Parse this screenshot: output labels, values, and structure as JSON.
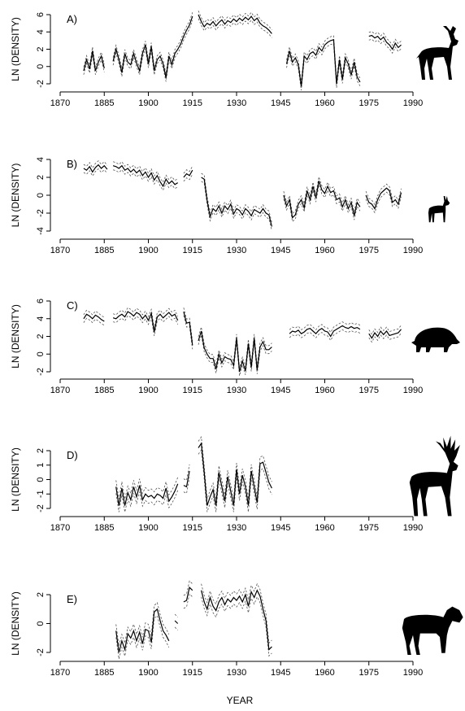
{
  "figure": {
    "xlabel": "YEAR",
    "ylabel": "LN (DENSITY)"
  },
  "chart_data": [
    {
      "type": "line",
      "panel": "A)",
      "species_icon": "fallow-deer-silhouette",
      "xlim": [
        1870,
        1990
      ],
      "ylim": [
        -2,
        6
      ],
      "xticks": [
        1870,
        1885,
        1900,
        1915,
        1930,
        1945,
        1960,
        1975,
        1990
      ],
      "yticks": [
        -2,
        0,
        2,
        4,
        6
      ],
      "series": [
        {
          "x": [
            1878,
            1879,
            1880,
            1881,
            1882,
            1883,
            1884,
            1885,
            null,
            1888,
            1889,
            1890,
            1891,
            1892,
            1893,
            1894,
            1895,
            1896,
            1897,
            1898,
            1899,
            1900,
            1901,
            1902,
            1903,
            1904,
            1905,
            1906,
            1907,
            1908,
            1909,
            1910,
            1911,
            1912,
            1913,
            1914,
            1915,
            null,
            1917,
            1918,
            1919,
            1920,
            1921,
            1922,
            1923,
            1924,
            1925,
            1926,
            1927,
            1928,
            1929,
            1930,
            1931,
            1932,
            1933,
            1934,
            1935,
            1936,
            1937,
            1938,
            1939,
            1940,
            1941,
            1942,
            null,
            1947,
            1948,
            1949,
            1950,
            1951,
            1952,
            1953,
            1954,
            1955,
            1956,
            1957,
            1958,
            1959,
            1960,
            1961,
            1962,
            1963,
            1964,
            1965,
            1966,
            1967,
            1968,
            1969,
            1970,
            1971,
            1972,
            null,
            1975,
            1976,
            1977,
            1978,
            1979,
            1980,
            1981,
            1982,
            1983,
            1984,
            1985,
            1986
          ],
          "y": [
            -0.5,
            0.8,
            -0.3,
            1.8,
            -0.5,
            0.5,
            1.2,
            -0.2,
            null,
            0.6,
            2.0,
            0.8,
            -0.7,
            1.5,
            0.5,
            0.2,
            1.5,
            0.4,
            -0.5,
            1.5,
            2.5,
            0.3,
            2.3,
            -0.5,
            0.8,
            1.2,
            0.3,
            -1.3,
            1.2,
            0.2,
            1.5,
            2.0,
            2.6,
            3.5,
            4.2,
            4.8,
            5.8,
            null,
            6.0,
            5.2,
            4.6,
            5.0,
            4.8,
            5.2,
            4.7,
            5.1,
            5.4,
            4.9,
            5.3,
            5.1,
            5.5,
            5.2,
            5.6,
            5.3,
            5.7,
            5.4,
            5.8,
            5.3,
            5.6,
            5.0,
            4.7,
            4.5,
            4.2,
            3.8,
            null,
            0.3,
            1.8,
            0.5,
            1.0,
            0.2,
            -2.3,
            1.2,
            0.8,
            1.5,
            1.7,
            1.3,
            2.2,
            1.8,
            2.5,
            2.8,
            3.0,
            3.1,
            -2.0,
            0.8,
            -1.5,
            1.0,
            0.3,
            -1.0,
            0.5,
            -1.2,
            -1.8,
            null,
            3.5,
            3.6,
            3.3,
            3.5,
            3.1,
            3.4,
            2.8,
            2.5,
            2.0,
            2.7,
            2.2,
            2.5
          ]
        }
      ]
    },
    {
      "type": "line",
      "panel": "B)",
      "species_icon": "roe-deer-silhouette",
      "xlim": [
        1870,
        1990
      ],
      "ylim": [
        -4,
        4
      ],
      "xticks": [
        1870,
        1885,
        1900,
        1915,
        1930,
        1945,
        1960,
        1975,
        1990
      ],
      "yticks": [
        -4,
        -2,
        0,
        2,
        4
      ],
      "series": [
        {
          "x": [
            1878,
            1879,
            1880,
            1881,
            1882,
            1883,
            1884,
            1885,
            1886,
            null,
            1888,
            1889,
            1890,
            1891,
            1892,
            1893,
            1894,
            1895,
            1896,
            1897,
            1898,
            1899,
            1900,
            1901,
            1902,
            1903,
            1904,
            1905,
            1906,
            1907,
            1908,
            1909,
            1910,
            null,
            1912,
            1913,
            1914,
            1915,
            null,
            1918,
            1919,
            1920,
            1921,
            1922,
            1923,
            1924,
            1925,
            1926,
            1927,
            1928,
            1929,
            1930,
            1931,
            1932,
            1933,
            1934,
            1935,
            1936,
            1937,
            1938,
            1939,
            1940,
            1941,
            1942,
            null,
            1946,
            1947,
            1948,
            1949,
            1950,
            1951,
            1952,
            1953,
            1954,
            1955,
            1956,
            1957,
            1958,
            1959,
            1960,
            1961,
            1962,
            1963,
            1964,
            1965,
            1966,
            1967,
            1968,
            1969,
            1970,
            1971,
            1972,
            null,
            1974,
            1975,
            1976,
            1977,
            1978,
            1979,
            1980,
            1981,
            1982,
            1983,
            1984,
            1985,
            1986
          ],
          "y": [
            3.0,
            2.8,
            3.2,
            2.6,
            3.1,
            3.4,
            3.0,
            3.3,
            2.9,
            null,
            3.3,
            3.2,
            3.0,
            3.3,
            2.8,
            3.0,
            2.6,
            2.9,
            2.5,
            2.8,
            2.2,
            2.6,
            2.0,
            2.5,
            1.7,
            2.2,
            1.5,
            1.0,
            1.8,
            1.3,
            1.6,
            1.2,
            1.4,
            null,
            2.0,
            2.4,
            2.2,
            2.8,
            null,
            2.0,
            1.8,
            -0.6,
            -2.4,
            -1.5,
            -1.8,
            -1.2,
            -2.0,
            -1.2,
            -1.6,
            -1.0,
            -2.1,
            -1.5,
            -1.7,
            -2.2,
            -1.5,
            -1.8,
            -2.3,
            -1.6,
            -1.8,
            -2.0,
            -1.5,
            -2.0,
            -2.2,
            -3.5,
            null,
            0.0,
            -1.2,
            -0.5,
            -2.5,
            -2.2,
            -1.0,
            -0.5,
            -1.4,
            0.5,
            -0.5,
            1.0,
            -0.3,
            1.6,
            0.6,
            0.2,
            1.0,
            0.3,
            0.5,
            -0.5,
            -0.3,
            -1.3,
            -0.5,
            -1.5,
            -0.8,
            -2.3,
            -0.8,
            -1.3,
            null,
            0.0,
            -0.8,
            -1.0,
            -1.5,
            -0.5,
            0.2,
            0.5,
            0.8,
            0.5,
            -0.8,
            -0.5,
            -1.0,
            0.3
          ]
        }
      ]
    },
    {
      "type": "line",
      "panel": "C)",
      "species_icon": "wild-boar-silhouette",
      "xlim": [
        1870,
        1990
      ],
      "ylim": [
        -2,
        6
      ],
      "xticks": [
        1870,
        1885,
        1900,
        1915,
        1930,
        1945,
        1960,
        1975,
        1990
      ],
      "yticks": [
        -2,
        0,
        2,
        4,
        6
      ],
      "series": [
        {
          "x": [
            1878,
            1879,
            1880,
            1881,
            1882,
            1883,
            1884,
            1885,
            null,
            1888,
            1889,
            1890,
            1891,
            1892,
            1893,
            1894,
            1895,
            1896,
            1897,
            1898,
            1899,
            1900,
            1901,
            1902,
            1903,
            1904,
            1905,
            1906,
            1907,
            1908,
            1909,
            1910,
            null,
            1912,
            1913,
            1914,
            1915,
            null,
            1917,
            1918,
            1919,
            1920,
            1921,
            1922,
            1923,
            1924,
            1925,
            1926,
            1927,
            1928,
            1929,
            1930,
            1931,
            1932,
            1933,
            1934,
            1935,
            1936,
            1937,
            1938,
            1939,
            1940,
            1941,
            1942,
            null,
            1948,
            1949,
            1950,
            1951,
            1952,
            1953,
            1954,
            1955,
            1956,
            1957,
            1958,
            1959,
            1960,
            1961,
            1962,
            1963,
            1964,
            1965,
            1966,
            1967,
            1968,
            1969,
            1970,
            1971,
            1972,
            null,
            1975,
            1976,
            1977,
            1978,
            1979,
            1980,
            1981,
            1982,
            1983,
            1984,
            1985,
            1986
          ],
          "y": [
            4.0,
            4.5,
            4.3,
            4.0,
            4.4,
            4.2,
            3.9,
            3.7,
            null,
            4.1,
            4.0,
            4.3,
            4.5,
            4.2,
            4.8,
            4.6,
            4.3,
            4.7,
            4.5,
            4.0,
            4.4,
            3.8,
            4.6,
            2.5,
            4.2,
            4.5,
            4.1,
            4.4,
            4.7,
            4.3,
            4.5,
            3.8,
            null,
            4.8,
            3.5,
            3.6,
            1.0,
            null,
            1.5,
            2.6,
            0.7,
            0.0,
            -0.5,
            -0.5,
            -1.7,
            0.0,
            -1.0,
            -0.3,
            -0.5,
            -0.6,
            -1.3,
            1.8,
            -2.0,
            -0.8,
            -1.9,
            1.2,
            -1.5,
            1.8,
            -1.8,
            0.8,
            1.4,
            0.5,
            0.5,
            0.8,
            null,
            2.3,
            2.6,
            2.5,
            2.7,
            2.3,
            2.5,
            2.8,
            2.9,
            2.6,
            2.3,
            2.7,
            2.9,
            2.6,
            2.5,
            2.0,
            2.6,
            2.8,
            3.0,
            3.2,
            3.0,
            2.9,
            3.1,
            2.9,
            3.0,
            2.8,
            null,
            2.3,
            1.8,
            2.4,
            2.0,
            2.6,
            2.2,
            2.6,
            2.1,
            2.2,
            2.3,
            2.4,
            2.8
          ]
        }
      ]
    },
    {
      "type": "line",
      "panel": "D)",
      "species_icon": "red-deer-silhouette",
      "xlim": [
        1870,
        1990
      ],
      "ylim": [
        -2,
        2
      ],
      "xticks": [
        1870,
        1885,
        1900,
        1915,
        1930,
        1945,
        1960,
        1975,
        1990
      ],
      "yticks": [
        -2,
        -1,
        0,
        1,
        2
      ],
      "series": [
        {
          "x": [
            1889,
            1890,
            1891,
            1892,
            1893,
            1894,
            1895,
            1896,
            1897,
            1898,
            1899,
            1900,
            1901,
            1902,
            1903,
            1904,
            1905,
            1906,
            1907,
            1908,
            1909,
            1910,
            null,
            1912,
            1913,
            1914,
            null,
            1917,
            1918,
            1919,
            1920,
            1921,
            1922,
            1923,
            1924,
            1925,
            1926,
            1927,
            1928,
            1929,
            1930,
            1931,
            1932,
            1933,
            1934,
            1935,
            1936,
            1937,
            1938,
            1939,
            1940,
            1941,
            1942
          ],
          "y": [
            -0.5,
            -1.8,
            -0.6,
            -1.8,
            -0.9,
            -1.4,
            -0.5,
            -1.2,
            -0.4,
            -1.4,
            -1.0,
            -1.2,
            -1.1,
            -1.3,
            -1.0,
            -1.1,
            -1.3,
            -0.6,
            -1.5,
            -1.2,
            -0.8,
            -0.3,
            null,
            -0.4,
            -0.5,
            0.6,
            null,
            2.2,
            2.5,
            0.5,
            -1.8,
            -1.2,
            -0.7,
            -1.8,
            0.5,
            -0.5,
            -1.5,
            0.2,
            -0.8,
            -1.8,
            0.7,
            -1.0,
            0.3,
            -0.5,
            -1.8,
            0.6,
            -0.5,
            -1.6,
            1.1,
            1.2,
            0.5,
            -0.2,
            -0.6
          ]
        }
      ]
    },
    {
      "type": "line",
      "panel": "E)",
      "species_icon": "moose-silhouette",
      "xlim": [
        1870,
        1990
      ],
      "ylim": [
        -2,
        2
      ],
      "xticks": [
        1870,
        1885,
        1900,
        1915,
        1930,
        1945,
        1960,
        1975,
        1990
      ],
      "yticks": [
        -2,
        0,
        2
      ],
      "series": [
        {
          "x": [
            1889,
            1890,
            1891,
            1892,
            1893,
            1894,
            1895,
            1896,
            1897,
            1898,
            1899,
            1900,
            1901,
            1902,
            1903,
            1904,
            1905,
            1906,
            1907,
            null,
            1909,
            1910,
            null,
            1912,
            1913,
            1914,
            1915,
            null,
            1918,
            1919,
            1920,
            1921,
            1922,
            1923,
            1924,
            1925,
            1926,
            1927,
            1928,
            1929,
            1930,
            1931,
            1932,
            1933,
            1934,
            1935,
            1936,
            1937,
            1938,
            1939,
            1940,
            1941,
            1942
          ],
          "y": [
            -0.5,
            -2.0,
            -1.2,
            -1.8,
            -0.7,
            -1.0,
            -0.5,
            -1.2,
            -0.6,
            -1.4,
            -0.4,
            -0.5,
            -1.3,
            0.8,
            1.0,
            0.2,
            -0.5,
            -0.8,
            -1.2,
            null,
            0.2,
            0.0,
            null,
            1.5,
            1.6,
            2.5,
            2.3,
            null,
            2.3,
            1.5,
            1.0,
            1.8,
            1.2,
            0.9,
            1.5,
            1.8,
            1.3,
            1.7,
            1.5,
            1.8,
            1.6,
            1.9,
            1.5,
            2.0,
            1.2,
            2.2,
            1.8,
            2.3,
            1.9,
            1.0,
            0.2,
            -1.8,
            -1.6
          ]
        }
      ]
    }
  ]
}
